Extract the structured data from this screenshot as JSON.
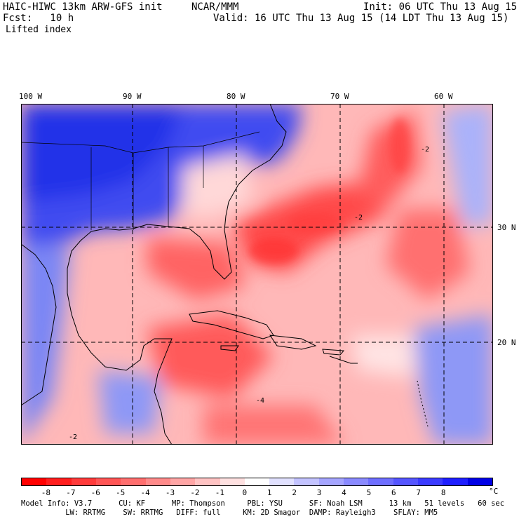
{
  "header": {
    "model": "HAIC-HIWC 13km ARW-GFS init",
    "org": "NCAR/MMM",
    "init": "Init: 06 UTC Thu 13 Aug 15",
    "fcst": "Fcst:   10 h",
    "valid": "Valid: 16 UTC Thu 13 Aug 15 (14 LDT Thu 13 Aug 15)",
    "field": "Lifted index"
  },
  "axes": {
    "lon_labels": [
      "100 W",
      "90 W",
      "80 W",
      "70 W",
      "60 W"
    ],
    "lat_labels": [
      "30 N",
      "20 N"
    ]
  },
  "map_labels": [
    "-2",
    "-4",
    "-2",
    "-2"
  ],
  "colorbar": {
    "ticks": [
      "-8",
      "-7",
      "-6",
      "-5",
      "-4",
      "-3",
      "-2",
      "-1",
      "0",
      "1",
      "2",
      "3",
      "4",
      "5",
      "6",
      "7",
      "8"
    ],
    "unit": "°C",
    "colors": [
      "#ff0000",
      "#ff1e1e",
      "#ff3a3a",
      "#ff5555",
      "#ff6e6e",
      "#ff8a8a",
      "#ffa5a5",
      "#ffc3c3",
      "#ffe1e1",
      "#ffffff",
      "#e1e1ff",
      "#c3c3ff",
      "#a5a5ff",
      "#8a8aff",
      "#6e6eff",
      "#5555ff",
      "#3a3aff",
      "#1e1eff",
      "#0000e6"
    ]
  },
  "footer": {
    "line1": "Model Info: V3.7      CU: KF      MP: Thompson     PBL: YSU      SF: Noah LSM      13 km   51 levels   60 sec",
    "line2": "          LW: RRTMG    SW: RRTMG   DIFF: full     KM: 2D Smagor  DAMP: Rayleigh3    SFLAY: MM5"
  }
}
